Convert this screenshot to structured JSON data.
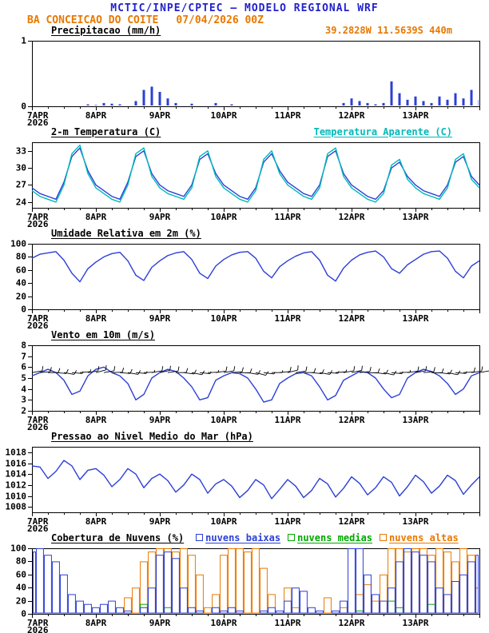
{
  "header": {
    "title": "MCTIC/INPE/CPTEC — MODELO REGIONAL WRF",
    "station": "BA CONCEICAO DO COITE",
    "run": "07/04/2026 00Z",
    "coords": "39.2828W 11.5639S 440m"
  },
  "colors": {
    "header_blue": "#2222cc",
    "orange": "#e87800",
    "line_blue": "#2b3fd6",
    "cyan": "#00b9b9",
    "green": "#00a800",
    "black": "#000000"
  },
  "x_axis": {
    "tick_labels": [
      "7APR",
      "8APR",
      "9APR",
      "10APR",
      "11APR",
      "12APR",
      "13APR"
    ],
    "year": "2026",
    "hours_total": 168,
    "major_hours": 24,
    "minor_hours": 6,
    "step_hours": 3
  },
  "chart_data": [
    {
      "id": "precip",
      "type": "bar",
      "title": "Precipitacao (mm/h)",
      "ylabel": "mm/h",
      "ylim": [
        0,
        1
      ],
      "yticks": [
        0,
        1
      ],
      "bar_color": "#2b3fd6",
      "values": [
        0,
        0,
        0,
        0,
        0,
        0,
        0,
        0.03,
        0.02,
        0.05,
        0.04,
        0.03,
        0,
        0.08,
        0.25,
        0.3,
        0.22,
        0.12,
        0.05,
        0,
        0.04,
        0,
        0,
        0.05,
        0,
        0.03,
        0,
        0,
        0,
        0,
        0,
        0,
        0,
        0,
        0,
        0,
        0,
        0,
        0,
        0.05,
        0.12,
        0.08,
        0.05,
        0.03,
        0.05,
        0.38,
        0.2,
        0.1,
        0.15,
        0.08,
        0.05,
        0.15,
        0.1,
        0.2,
        0.12,
        0.25,
        0.1
      ]
    },
    {
      "id": "temp",
      "type": "line",
      "title": "2-m Temperatura (C)",
      "right_label": "Temperatura Aparente (C)",
      "right_label_color": "#00b9b9",
      "ylim": [
        23,
        34.5
      ],
      "yticks": [
        24,
        27,
        30,
        33
      ],
      "series": [
        {
          "name": "2-m Temperatura (C)",
          "color": "#2b3fd6",
          "values": [
            26.5,
            25.5,
            25.0,
            24.5,
            27.5,
            32.0,
            33.5,
            29.5,
            27.0,
            26.0,
            25.0,
            24.5,
            27.5,
            32.0,
            33.0,
            29.0,
            27.0,
            26.0,
            25.5,
            25.0,
            27.0,
            31.5,
            32.5,
            29.0,
            27.0,
            26.0,
            25.0,
            24.5,
            26.5,
            31.0,
            32.5,
            29.5,
            27.5,
            26.5,
            25.5,
            25.0,
            27.0,
            32.0,
            33.0,
            29.0,
            27.0,
            26.0,
            25.0,
            24.5,
            26.0,
            30.0,
            31.0,
            28.5,
            27.0,
            26.0,
            25.5,
            25.0,
            27.0,
            31.0,
            32.0,
            28.5,
            27.0
          ]
        },
        {
          "name": "Temperatura Aparente (C)",
          "color": "#00b9b9",
          "values": [
            26.0,
            25.0,
            24.5,
            24.0,
            27.0,
            32.5,
            34.0,
            29.0,
            26.5,
            25.5,
            24.5,
            24.0,
            27.0,
            32.5,
            33.5,
            28.5,
            26.5,
            25.5,
            25.0,
            24.5,
            26.5,
            32.0,
            33.0,
            28.5,
            26.5,
            25.5,
            24.5,
            24.0,
            26.0,
            31.5,
            33.0,
            29.0,
            27.0,
            26.0,
            25.0,
            24.5,
            26.5,
            32.5,
            33.5,
            28.5,
            26.5,
            25.5,
            24.5,
            24.0,
            25.5,
            30.5,
            31.5,
            28.0,
            26.5,
            25.5,
            25.0,
            24.5,
            26.5,
            31.5,
            32.5,
            28.0,
            26.5
          ]
        }
      ]
    },
    {
      "id": "rh",
      "type": "line",
      "title": "Umidade Relativa em 2m (%)",
      "ylim": [
        0,
        100
      ],
      "yticks": [
        0,
        20,
        40,
        60,
        80,
        100
      ],
      "series": [
        {
          "name": "Umidade Relativa",
          "color": "#2b3fd6",
          "values": [
            78,
            84,
            86,
            88,
            75,
            55,
            42,
            62,
            72,
            80,
            85,
            87,
            74,
            52,
            44,
            64,
            74,
            82,
            86,
            88,
            76,
            55,
            47,
            66,
            76,
            83,
            87,
            88,
            78,
            58,
            48,
            65,
            74,
            81,
            86,
            88,
            75,
            52,
            43,
            63,
            75,
            83,
            87,
            89,
            80,
            62,
            55,
            68,
            76,
            84,
            88,
            89,
            78,
            58,
            48,
            66,
            74
          ]
        }
      ]
    },
    {
      "id": "wind",
      "type": "line",
      "title": "Vento em 10m (m/s)",
      "ylim": [
        2,
        8
      ],
      "yticks": [
        2,
        3,
        4,
        5,
        6,
        7,
        8
      ],
      "series": [
        {
          "name": "Vento em 10m",
          "color": "#2b3fd6",
          "values": [
            5.2,
            5.5,
            5.8,
            5.5,
            4.8,
            3.5,
            3.8,
            5.2,
            5.8,
            6.0,
            5.5,
            5.2,
            4.5,
            3.0,
            3.5,
            5.0,
            5.5,
            5.8,
            5.6,
            5.0,
            4.2,
            3.0,
            3.2,
            4.8,
            5.2,
            5.5,
            5.4,
            5.0,
            4.0,
            2.8,
            3.0,
            4.5,
            5.0,
            5.4,
            5.5,
            5.2,
            4.2,
            3.0,
            3.4,
            4.8,
            5.2,
            5.6,
            5.5,
            5.0,
            4.0,
            3.2,
            3.5,
            5.0,
            5.5,
            5.8,
            5.6,
            5.2,
            4.5,
            3.5,
            4.0,
            5.2,
            5.5
          ]
        }
      ],
      "barbs": {
        "color": "#000000",
        "y_value": 5.5,
        "dirs": [
          80,
          85,
          90,
          95,
          100,
          95,
          85,
          80,
          75,
          80,
          88,
          95,
          100,
          95,
          88,
          80,
          78,
          82,
          90,
          98,
          102,
          96,
          88,
          82,
          80,
          86,
          92,
          100,
          105,
          98,
          90,
          84,
          76,
          82,
          90,
          96,
          100,
          94,
          86,
          80,
          78,
          84,
          92,
          98,
          103,
          96,
          88,
          82,
          80,
          85,
          92,
          98,
          102,
          95,
          87,
          81,
          80
        ]
      }
    },
    {
      "id": "pres",
      "type": "line",
      "title": "Pressao ao Nivel Medio do Mar (hPa)",
      "ylim": [
        1007,
        1019
      ],
      "yticks": [
        1008,
        1010,
        1012,
        1014,
        1016,
        1018
      ],
      "series": [
        {
          "name": "Pressao ao Nivel Medio do Mar",
          "color": "#2b3fd6",
          "values": [
            1015.5,
            1015.3,
            1013.2,
            1014.5,
            1016.5,
            1015.5,
            1013.0,
            1014.7,
            1015.0,
            1013.8,
            1011.7,
            1013.0,
            1015.0,
            1014.0,
            1011.5,
            1013.2,
            1014.0,
            1012.8,
            1010.7,
            1012.0,
            1014.0,
            1013.0,
            1010.5,
            1012.2,
            1013.0,
            1011.8,
            1009.7,
            1011.0,
            1013.0,
            1012.0,
            1009.5,
            1011.2,
            1013.0,
            1011.8,
            1009.7,
            1011.0,
            1013.2,
            1012.2,
            1009.8,
            1011.4,
            1013.5,
            1012.3,
            1010.2,
            1011.5,
            1013.5,
            1012.5,
            1010.0,
            1011.7,
            1013.8,
            1012.6,
            1010.5,
            1011.8,
            1013.8,
            1012.8,
            1010.3,
            1012.0,
            1013.5
          ]
        }
      ]
    },
    {
      "id": "clouds",
      "type": "bar-multi",
      "title": "Cobertura de Nuvens (%)",
      "ylim": [
        0,
        100
      ],
      "yticks": [
        0,
        20,
        40,
        60,
        80,
        100
      ],
      "series": [
        {
          "name": "nuvens baixas",
          "color": "#2b3fd6",
          "values": [
            95,
            100,
            90,
            80,
            60,
            30,
            20,
            15,
            10,
            15,
            20,
            10,
            5,
            0,
            10,
            40,
            90,
            95,
            85,
            40,
            10,
            5,
            0,
            10,
            5,
            10,
            5,
            0,
            0,
            5,
            10,
            5,
            20,
            40,
            35,
            10,
            5,
            0,
            5,
            20,
            100,
            100,
            60,
            30,
            20,
            40,
            80,
            100,
            95,
            90,
            80,
            40,
            30,
            50,
            60,
            80,
            90
          ]
        },
        {
          "name": "nuvens medias",
          "color": "#00a800",
          "values": [
            0,
            0,
            0,
            0,
            0,
            0,
            0,
            0,
            0,
            0,
            0,
            0,
            0,
            0,
            15,
            0,
            0,
            10,
            0,
            0,
            0,
            0,
            0,
            0,
            0,
            0,
            0,
            0,
            0,
            0,
            0,
            0,
            0,
            0,
            0,
            0,
            0,
            0,
            0,
            0,
            0,
            5,
            0,
            0,
            0,
            20,
            10,
            0,
            0,
            0,
            15,
            0,
            0,
            0,
            0,
            0,
            0
          ]
        },
        {
          "name": "nuvens altas",
          "color": "#e87800",
          "values": [
            0,
            0,
            0,
            0,
            0,
            0,
            0,
            0,
            0,
            0,
            0,
            0,
            25,
            40,
            80,
            95,
            100,
            100,
            95,
            100,
            90,
            60,
            10,
            30,
            90,
            100,
            100,
            95,
            100,
            70,
            30,
            0,
            40,
            10,
            0,
            0,
            0,
            25,
            0,
            10,
            0,
            30,
            45,
            20,
            60,
            100,
            100,
            95,
            100,
            100,
            90,
            100,
            95,
            80,
            100,
            90,
            40
          ]
        }
      ]
    }
  ]
}
